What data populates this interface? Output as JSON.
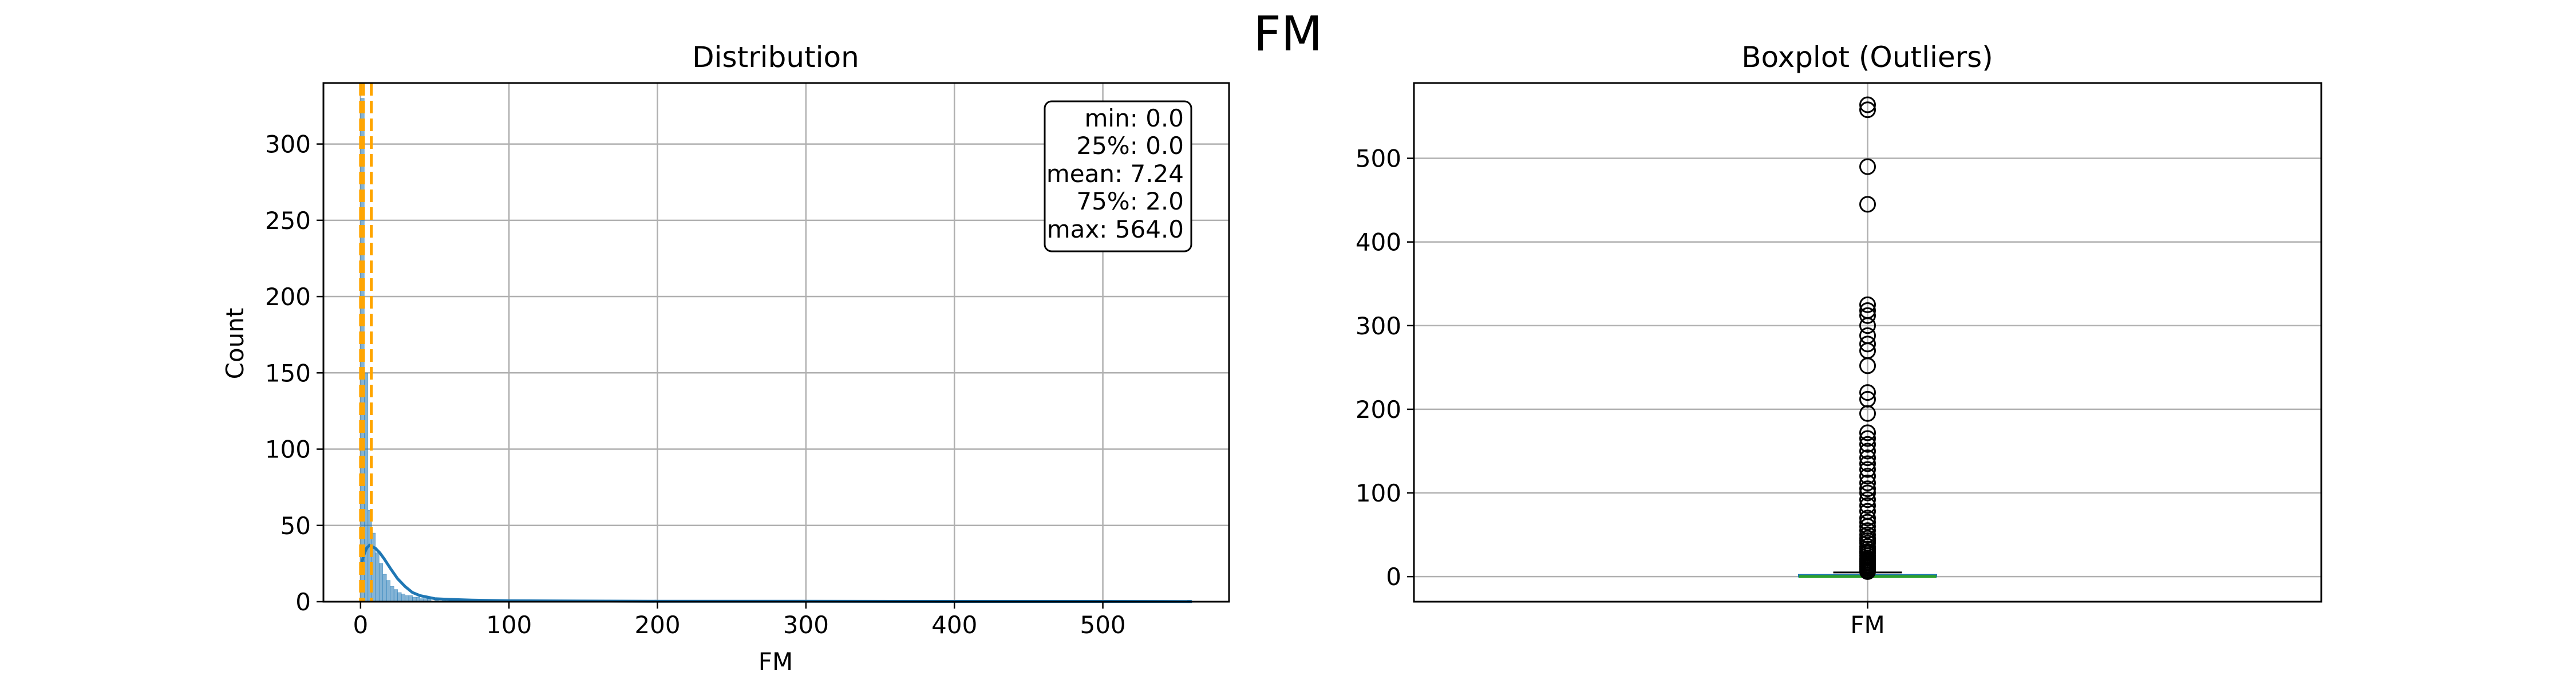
{
  "figure": {
    "title": "FM"
  },
  "colors": {
    "hist": "#1f77b4",
    "kde": "#1f77b4",
    "quantile_lines": "#ffa500",
    "median": "#2ca02c",
    "grid": "#b0b0b0"
  },
  "chart_data": [
    {
      "type": "bar",
      "subtype": "histogram_with_kde",
      "title": "Distribution",
      "xlabel": "FM",
      "ylabel": "Count",
      "xlim": [
        -25,
        585
      ],
      "ylim": [
        0,
        340
      ],
      "xticks": [
        0,
        100,
        200,
        300,
        400,
        500
      ],
      "yticks": [
        0,
        50,
        100,
        150,
        200,
        250,
        300
      ],
      "grid": true,
      "bin_width": 2.5,
      "bins": [
        {
          "x": 0,
          "count": 330
        },
        {
          "x": 2.5,
          "count": 150
        },
        {
          "x": 5,
          "count": 60
        },
        {
          "x": 7.5,
          "count": 45
        },
        {
          "x": 10,
          "count": 32
        },
        {
          "x": 12.5,
          "count": 25
        },
        {
          "x": 15,
          "count": 18
        },
        {
          "x": 17.5,
          "count": 14
        },
        {
          "x": 20,
          "count": 10
        },
        {
          "x": 22.5,
          "count": 8
        },
        {
          "x": 25,
          "count": 6
        },
        {
          "x": 27.5,
          "count": 5
        },
        {
          "x": 30,
          "count": 4
        },
        {
          "x": 32.5,
          "count": 4
        },
        {
          "x": 35,
          "count": 3
        },
        {
          "x": 37.5,
          "count": 3
        },
        {
          "x": 40,
          "count": 2
        },
        {
          "x": 42.5,
          "count": 2
        },
        {
          "x": 45,
          "count": 2
        },
        {
          "x": 50,
          "count": 1
        },
        {
          "x": 55,
          "count": 1
        },
        {
          "x": 60,
          "count": 1
        },
        {
          "x": 70,
          "count": 1
        },
        {
          "x": 100,
          "count": 1
        },
        {
          "x": 145,
          "count": 1
        },
        {
          "x": 270,
          "count": 1
        },
        {
          "x": 325,
          "count": 1
        },
        {
          "x": 445,
          "count": 1
        },
        {
          "x": 490,
          "count": 1
        },
        {
          "x": 557,
          "count": 1
        }
      ],
      "kde": {
        "x": [
          0,
          2,
          4,
          6,
          8,
          10,
          13,
          16,
          20,
          25,
          30,
          35,
          40,
          45,
          50,
          60,
          75,
          100,
          150,
          200,
          300,
          400,
          500,
          560
        ],
        "y": [
          22,
          30,
          35,
          37,
          36,
          35,
          32,
          28,
          22,
          15,
          10,
          6,
          4,
          3,
          2,
          1.5,
          1,
          0.6,
          0.4,
          0.3,
          0.3,
          0.2,
          0.2,
          0.1
        ]
      },
      "vlines": [
        {
          "x": 0.0,
          "style": "dashed"
        },
        {
          "x": 2.0,
          "style": "dashed"
        },
        {
          "x": 7.24,
          "style": "dashed"
        }
      ],
      "stats_box": [
        "min: 0.0",
        "25%: 0.0",
        "mean: 7.24",
        "75%: 2.0",
        "max: 564.0"
      ]
    },
    {
      "type": "boxplot",
      "title": "Boxplot (Outliers)",
      "categories": [
        "FM"
      ],
      "ylim": [
        -30,
        590
      ],
      "yticks": [
        0,
        100,
        200,
        300,
        400,
        500
      ],
      "grid": true,
      "box": {
        "q1": 0.0,
        "median": 0.0,
        "q3": 2.0,
        "whisker_low": 0.0,
        "whisker_high": 5.0
      },
      "outliers": [
        6,
        8,
        10,
        12,
        14,
        16,
        18,
        20,
        22,
        25,
        28,
        30,
        33,
        36,
        40,
        43,
        46,
        50,
        55,
        60,
        65,
        70,
        78,
        85,
        92,
        100,
        105,
        112,
        120,
        128,
        135,
        142,
        150,
        158,
        165,
        172,
        195,
        212,
        220,
        252,
        270,
        278,
        288,
        300,
        312,
        318,
        325,
        445,
        490,
        558,
        564
      ]
    }
  ]
}
